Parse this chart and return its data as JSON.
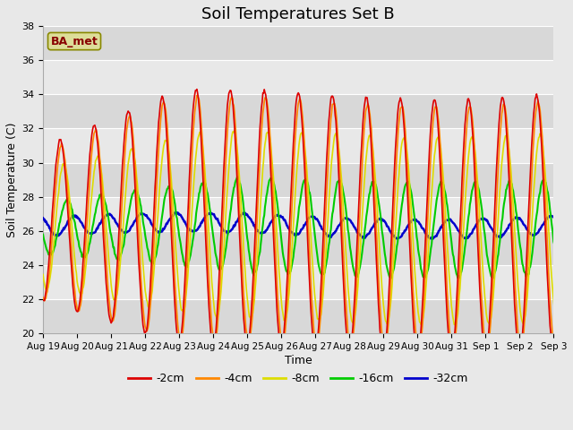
{
  "title": "Soil Temperatures Set B",
  "xlabel": "Time",
  "ylabel": "Soil Temperature (C)",
  "ylim": [
    20,
    38
  ],
  "yticks": [
    20,
    22,
    24,
    26,
    28,
    30,
    32,
    34,
    36,
    38
  ],
  "xtick_labels": [
    "Aug 19",
    "Aug 20",
    "Aug 21",
    "Aug 22",
    "Aug 23",
    "Aug 24",
    "Aug 25",
    "Aug 26",
    "Aug 27",
    "Aug 28",
    "Aug 29",
    "Aug 30",
    "Aug 31",
    "Sep 1",
    "Sep 2",
    "Sep 3"
  ],
  "colors": {
    "-2cm": "#dd0000",
    "-4cm": "#ff8800",
    "-8cm": "#dddd00",
    "-16cm": "#00cc00",
    "-32cm": "#0000cc"
  },
  "annotation_text": "BA_met",
  "annotation_box_facecolor": "#dddd99",
  "annotation_text_color": "#880000",
  "annotation_edge_color": "#888800",
  "fig_facecolor": "#e8e8e8",
  "axes_facecolor": "#e8e8e8",
  "band_colors": [
    "#d8d8d8",
    "#e8e8e8"
  ],
  "grid_color": "#ffffff",
  "n_days": 16,
  "ppd": 48
}
